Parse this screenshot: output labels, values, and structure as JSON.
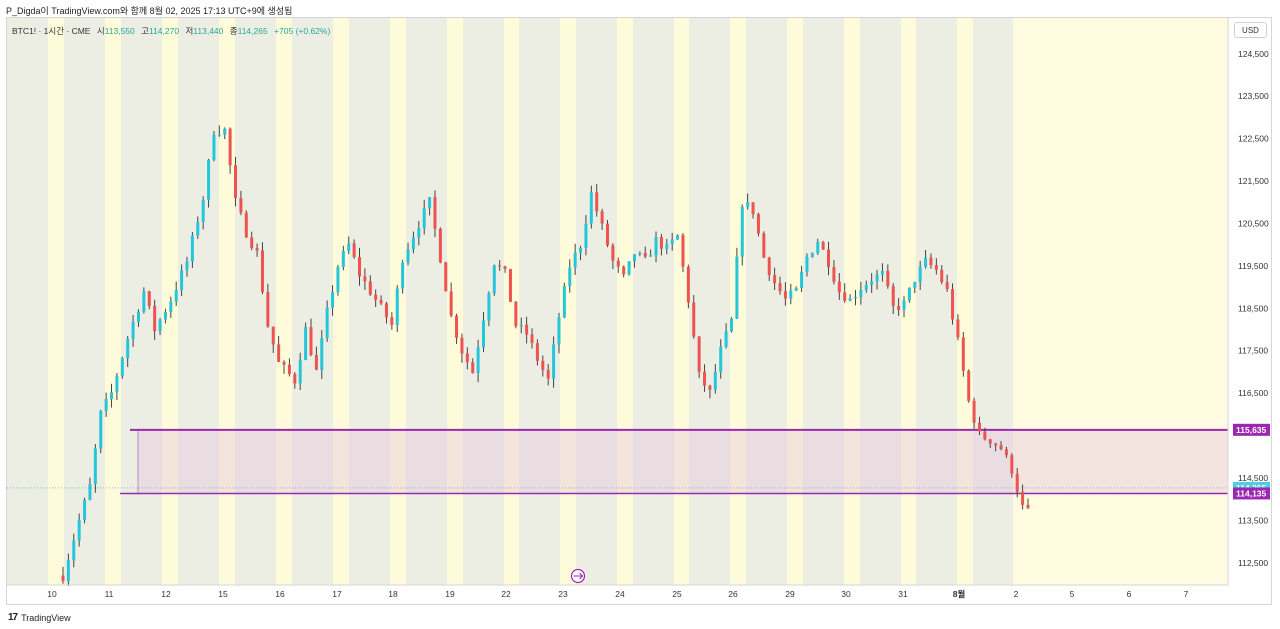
{
  "caption": "P_Digda이 TradingView.com와 함께 8월 02, 2025 17:13 UTC+9에 생성됨",
  "legend": {
    "symbol": "BTC1! · 1시간 · CME",
    "open_label": "시",
    "open": "113,550",
    "high_label": "고",
    "high": "114,270",
    "low_label": "저",
    "low": "113,440",
    "close_label": "종",
    "close": "114,265",
    "change": "+705 (+0.62%)"
  },
  "currency_button": "USD",
  "footer": {
    "logo": "17",
    "brand": "TradingView"
  },
  "colors": {
    "up": "#26c6da",
    "down": "#ef5350",
    "wick": "#444444",
    "zone_line": "#9c27b0",
    "zone_fill": "#e7c8dd",
    "band_gray": "#eceee3",
    "band_yellow": "#fefbdb",
    "band_white": "#f6f6ee",
    "future_fill": "#fefbe0",
    "last_price_bg": "#4dd0e1"
  },
  "chart_data": {
    "type": "candlestick",
    "title": "",
    "ylim": [
      112000,
      125000
    ],
    "y_ticks": [
      112500,
      113500,
      114500,
      116500,
      117500,
      118500,
      119500,
      120500,
      121500,
      122500,
      123500,
      124500
    ],
    "y_tick_labels": [
      "112,500",
      "113,500",
      "114,500",
      "116,500",
      "117,500",
      "118,500",
      "119,500",
      "120,500",
      "121,500",
      "122,500",
      "123,500",
      "124,500"
    ],
    "x_tick_labels": [
      "10",
      "11",
      "12",
      "15",
      "16",
      "17",
      "18",
      "19",
      "22",
      "23",
      "24",
      "25",
      "26",
      "29",
      "30",
      "31",
      "8월",
      "2",
      "5",
      "6",
      "7"
    ],
    "zone": {
      "top": 115635,
      "bottom": 114135,
      "top_label": "115,635",
      "bottom_label": "114,135"
    },
    "last_price": {
      "value": 114265,
      "label": "114,265"
    },
    "anchors": [
      [
        0,
        112200
      ],
      [
        3,
        113500
      ],
      [
        5,
        114300
      ],
      [
        7,
        116000
      ],
      [
        9,
        116500
      ],
      [
        12,
        117800
      ],
      [
        15,
        118900
      ],
      [
        17,
        118000
      ],
      [
        20,
        118700
      ],
      [
        23,
        119600
      ],
      [
        26,
        121100
      ],
      [
        28,
        122700
      ],
      [
        30,
        122700
      ],
      [
        32,
        121000
      ],
      [
        34,
        120300
      ],
      [
        36,
        119800
      ],
      [
        38,
        118100
      ],
      [
        40,
        117200
      ],
      [
        43,
        116800
      ],
      [
        45,
        118000
      ],
      [
        47,
        117000
      ],
      [
        49,
        118400
      ],
      [
        51,
        119500
      ],
      [
        53,
        120000
      ],
      [
        55,
        119300
      ],
      [
        58,
        118700
      ],
      [
        61,
        118100
      ],
      [
        63,
        119700
      ],
      [
        66,
        120500
      ],
      [
        68,
        121000
      ],
      [
        70,
        119700
      ],
      [
        72,
        118300
      ],
      [
        74,
        117500
      ],
      [
        76,
        117000
      ],
      [
        78,
        118300
      ],
      [
        80,
        119600
      ],
      [
        82,
        119300
      ],
      [
        84,
        118100
      ],
      [
        86,
        117900
      ],
      [
        88,
        117300
      ],
      [
        90,
        116800
      ],
      [
        92,
        118300
      ],
      [
        94,
        119500
      ],
      [
        96,
        120000
      ],
      [
        98,
        121200
      ],
      [
        100,
        120400
      ],
      [
        102,
        119600
      ],
      [
        104,
        119200
      ],
      [
        106,
        119800
      ],
      [
        108,
        119600
      ],
      [
        110,
        120100
      ],
      [
        112,
        119900
      ],
      [
        114,
        120200
      ],
      [
        116,
        118700
      ],
      [
        118,
        116900
      ],
      [
        120,
        116500
      ],
      [
        122,
        117500
      ],
      [
        124,
        118200
      ],
      [
        126,
        121000
      ],
      [
        128,
        120800
      ],
      [
        130,
        119700
      ],
      [
        132,
        119100
      ],
      [
        134,
        118700
      ],
      [
        136,
        118900
      ],
      [
        138,
        119700
      ],
      [
        140,
        120100
      ],
      [
        142,
        119600
      ],
      [
        144,
        118900
      ],
      [
        146,
        118700
      ],
      [
        148,
        119000
      ],
      [
        150,
        119200
      ],
      [
        152,
        119300
      ],
      [
        154,
        118500
      ],
      [
        156,
        118600
      ],
      [
        158,
        119200
      ],
      [
        160,
        119600
      ],
      [
        162,
        119400
      ],
      [
        164,
        118900
      ],
      [
        166,
        117700
      ],
      [
        168,
        116300
      ],
      [
        170,
        115500
      ],
      [
        172,
        115400
      ],
      [
        174,
        115200
      ],
      [
        176,
        114700
      ],
      [
        178,
        113800
      ],
      [
        179,
        113700
      ]
    ]
  }
}
